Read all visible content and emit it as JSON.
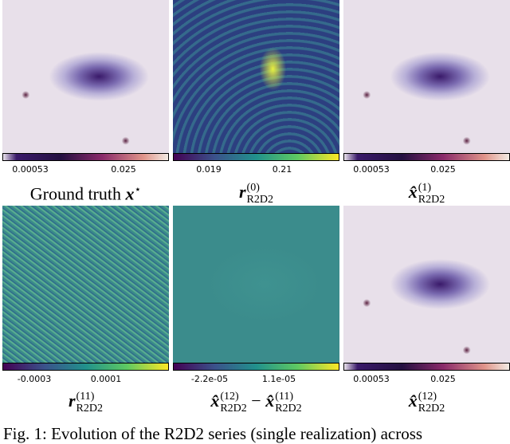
{
  "panels": [
    {
      "ticks": [
        "0.00053",
        "0.025"
      ],
      "label": {
        "prefix": "Ground truth",
        "symbol": "x",
        "sup": "⋆"
      }
    },
    {
      "ticks": [
        "0.019",
        "0.21"
      ],
      "label": {
        "symbol": "r",
        "sup": "(0)",
        "sub": "R2D2"
      }
    },
    {
      "ticks": [
        "0.00053",
        "0.025"
      ],
      "label": {
        "symbol": "x̂",
        "sup": "(1)",
        "sub": "R2D2"
      }
    },
    {
      "ticks": [
        "-0.0003",
        "0.0001"
      ],
      "label": {
        "symbol": "r",
        "sup": "(11)",
        "sub": "R2D2"
      }
    },
    {
      "ticks": [
        "-2.2e-05",
        "1.1e-05"
      ],
      "label": {
        "symbol": "x̂",
        "sup": "(12)",
        "sub": "R2D2",
        "operator": "−",
        "symbol2": "x̂",
        "sup2": "(11)",
        "sub2": "R2D2"
      }
    },
    {
      "ticks": [
        "0.00053",
        "0.025"
      ],
      "label": {
        "symbol": "x̂",
        "sup": "(12)",
        "sub": "R2D2"
      }
    }
  ],
  "caption": "Fig. 1: Evolution of the R2D2 series (single realization) across"
}
